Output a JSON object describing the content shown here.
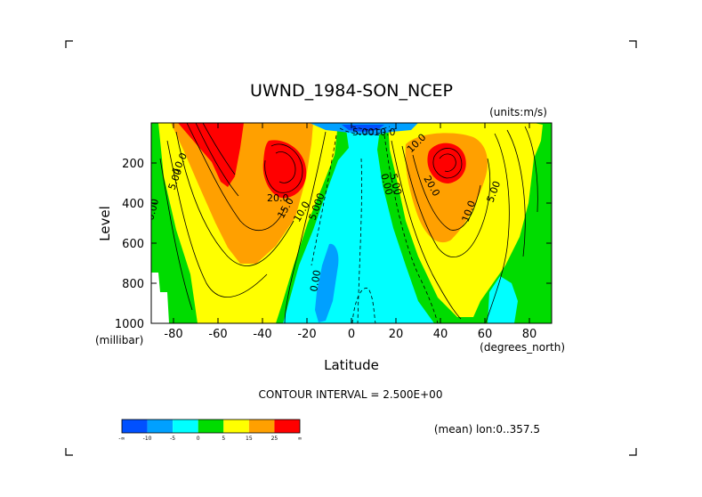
{
  "chart_data": {
    "type": "contour",
    "title": "UWND_1984-SON_NCEP",
    "units": "(units:m/s)",
    "xlabel": "Latitude",
    "ylabel": "Level",
    "x_unit_label": "(degrees_north)",
    "y_unit_label": "(millibar)",
    "xlim": [
      -90,
      90
    ],
    "ylim": [
      1000,
      0
    ],
    "x_ticks": [
      -80,
      -60,
      -40,
      -20,
      0,
      20,
      40,
      60,
      80
    ],
    "y_ticks": [
      200,
      400,
      600,
      800,
      1000
    ],
    "contour_interval_text": "CONTOUR INTERVAL = 2.500E+00",
    "footnote": "(mean) lon:0..357.5",
    "contour_labels": [
      "10.0",
      "5.00",
      "0.00",
      "20.0",
      "15.0",
      "10.0",
      "5.000",
      "0.00",
      "5.00",
      "10.0",
      "0.00",
      "5.00",
      "20.0",
      "10.0",
      "5.00",
      "10.0"
    ],
    "colorbar": {
      "colors": [
        "#0050ff",
        "#00a0ff",
        "#00ffff",
        "#00dc00",
        "#ffff00",
        "#ffa000",
        "#ff0000"
      ],
      "labels": [
        "-∞",
        "-10",
        "-5",
        "0",
        "5",
        "15",
        "25",
        "∞"
      ]
    },
    "jets": [
      {
        "lat": -55,
        "level": 100,
        "peak": 30
      },
      {
        "lat": -28,
        "level": 200,
        "peak": 27
      },
      {
        "lat": 42,
        "level": 200,
        "peak": 29
      }
    ]
  }
}
